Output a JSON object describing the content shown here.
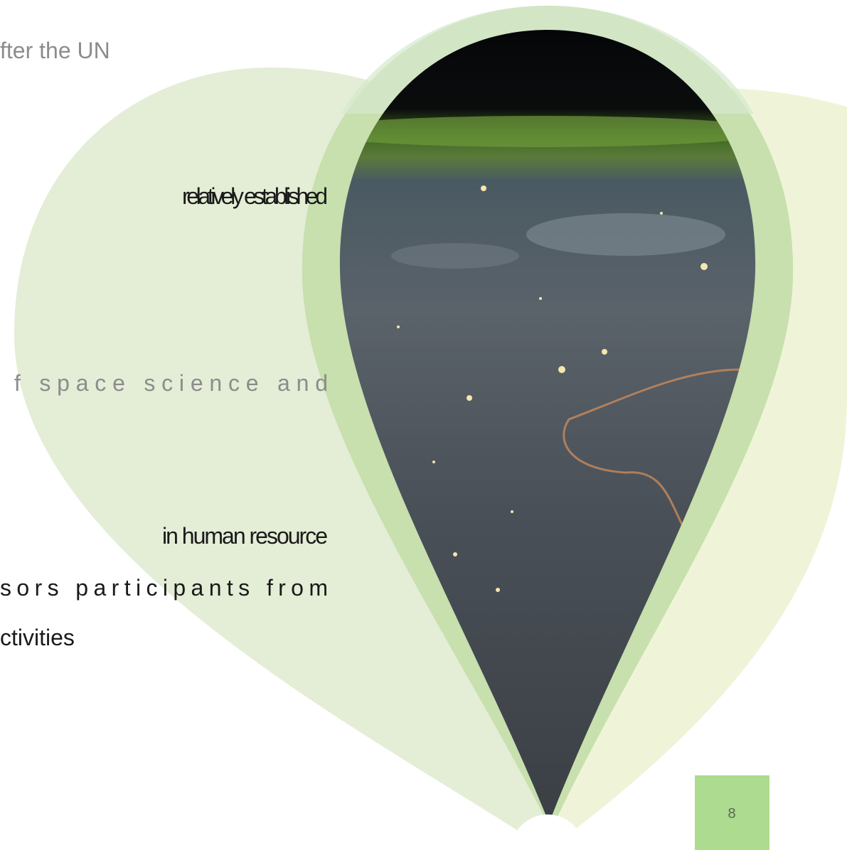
{
  "slide": {
    "text_lines": [
      "fter the UN",
      "relatively established",
      "f space science and",
      "in human resource",
      "sors participants from",
      "ctivities"
    ],
    "page_number": "8"
  }
}
